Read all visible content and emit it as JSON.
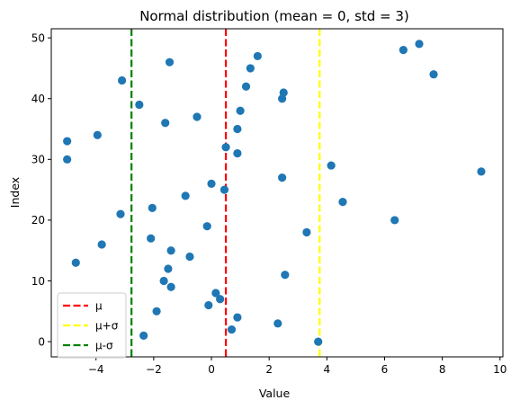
{
  "chart_data": {
    "type": "scatter",
    "title": "Normal distribution (mean = 0, std = 3)",
    "xlabel": "Value",
    "ylabel": "Index",
    "xlim": [
      -5.55,
      10.1
    ],
    "ylim": [
      -2.5,
      51.5
    ],
    "xticks": [
      -4,
      -2,
      0,
      2,
      4,
      6,
      8,
      10
    ],
    "yticks": [
      0,
      10,
      20,
      30,
      40,
      50
    ],
    "grid": false,
    "legend_position": "lower-left",
    "marker_color": "#1f77b4",
    "points": [
      {
        "x": 3.7,
        "y": 0
      },
      {
        "x": -2.35,
        "y": 1
      },
      {
        "x": 0.7,
        "y": 2
      },
      {
        "x": 2.3,
        "y": 3
      },
      {
        "x": 0.9,
        "y": 4
      },
      {
        "x": -1.9,
        "y": 5
      },
      {
        "x": -0.1,
        "y": 6
      },
      {
        "x": 0.3,
        "y": 7
      },
      {
        "x": 0.15,
        "y": 8
      },
      {
        "x": -1.4,
        "y": 9
      },
      {
        "x": -1.65,
        "y": 10
      },
      {
        "x": 2.55,
        "y": 11
      },
      {
        "x": -1.5,
        "y": 12
      },
      {
        "x": -4.7,
        "y": 13
      },
      {
        "x": -0.75,
        "y": 14
      },
      {
        "x": -1.4,
        "y": 15
      },
      {
        "x": -3.8,
        "y": 16
      },
      {
        "x": -2.1,
        "y": 17
      },
      {
        "x": 3.3,
        "y": 18
      },
      {
        "x": -0.15,
        "y": 19
      },
      {
        "x": 6.35,
        "y": 20
      },
      {
        "x": -3.15,
        "y": 21
      },
      {
        "x": -2.05,
        "y": 22
      },
      {
        "x": 4.55,
        "y": 23
      },
      {
        "x": -0.9,
        "y": 24
      },
      {
        "x": 0.45,
        "y": 25
      },
      {
        "x": 0.0,
        "y": 26
      },
      {
        "x": 2.45,
        "y": 27
      },
      {
        "x": 9.35,
        "y": 28
      },
      {
        "x": 4.15,
        "y": 29
      },
      {
        "x": -5.0,
        "y": 30
      },
      {
        "x": 0.9,
        "y": 31
      },
      {
        "x": 0.5,
        "y": 32
      },
      {
        "x": -5.0,
        "y": 33
      },
      {
        "x": -3.95,
        "y": 34
      },
      {
        "x": 0.9,
        "y": 35
      },
      {
        "x": -1.6,
        "y": 36
      },
      {
        "x": -0.5,
        "y": 37
      },
      {
        "x": 1.0,
        "y": 38
      },
      {
        "x": -2.5,
        "y": 39
      },
      {
        "x": 2.45,
        "y": 40
      },
      {
        "x": 2.5,
        "y": 41
      },
      {
        "x": 1.2,
        "y": 42
      },
      {
        "x": -3.1,
        "y": 43
      },
      {
        "x": 7.7,
        "y": 44
      },
      {
        "x": 1.35,
        "y": 45
      },
      {
        "x": -1.45,
        "y": 46
      },
      {
        "x": 1.6,
        "y": 47
      },
      {
        "x": 6.65,
        "y": 48
      },
      {
        "x": 7.2,
        "y": 49
      }
    ],
    "lines": [
      {
        "name": "μ",
        "x": 0.5,
        "color": "#ff0000"
      },
      {
        "name": "μ+σ",
        "x": 3.75,
        "color": "#ffff00"
      },
      {
        "name": "μ-σ",
        "x": -2.77,
        "color": "#008000"
      }
    ]
  }
}
